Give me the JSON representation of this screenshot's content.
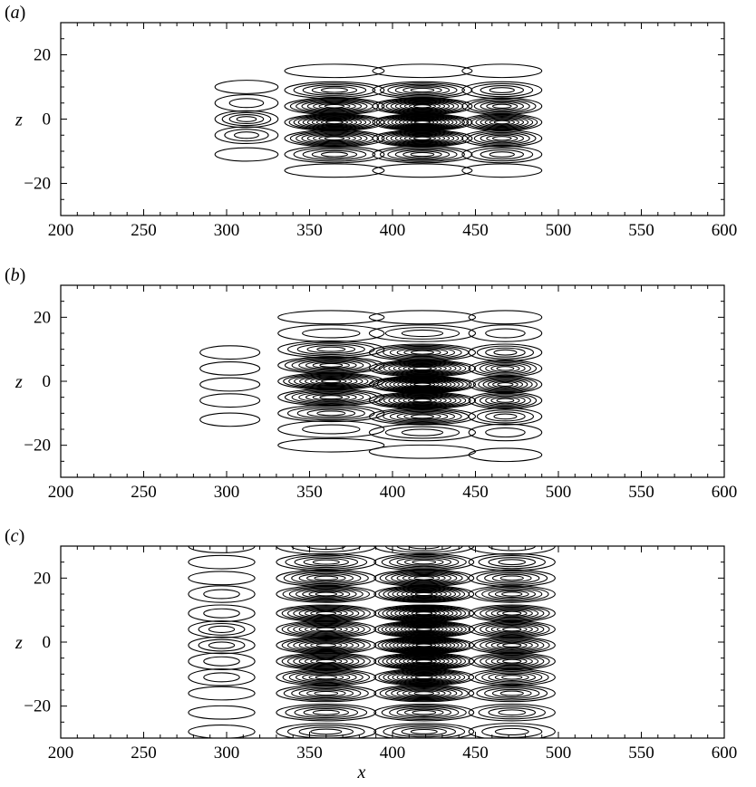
{
  "chart_data": [
    {
      "type": "contour",
      "panel_label": "(a)",
      "xlabel": "",
      "ylabel": "z",
      "xlim": [
        200,
        600
      ],
      "ylim": [
        -30,
        30
      ],
      "xticks": [
        200,
        250,
        300,
        350,
        400,
        450,
        500,
        550,
        600
      ],
      "yticks": [
        -20,
        0,
        20
      ],
      "grid": false,
      "wave_packets": [
        {
          "x_center": 312,
          "x_halfwidth": 19,
          "z_centers": [
            10,
            5,
            0,
            -5,
            -11
          ],
          "levels": [
            1,
            2,
            4,
            3,
            1
          ]
        },
        {
          "x_center": 365,
          "x_halfwidth": 30,
          "z_centers": [
            15,
            9,
            4,
            -1,
            -6,
            -11,
            -16
          ],
          "levels": [
            1,
            5,
            8,
            10,
            8,
            5,
            1
          ]
        },
        {
          "x_center": 418,
          "x_halfwidth": 30,
          "z_centers": [
            15,
            9,
            4,
            -1,
            -6,
            -11,
            -16
          ],
          "levels": [
            1,
            6,
            10,
            12,
            10,
            6,
            1
          ]
        },
        {
          "x_center": 466,
          "x_halfwidth": 24,
          "z_centers": [
            15,
            9,
            4,
            -1,
            -6,
            -11,
            -16
          ],
          "levels": [
            1,
            4,
            6,
            8,
            6,
            4,
            1
          ]
        }
      ]
    },
    {
      "type": "contour",
      "panel_label": "(b)",
      "xlabel": "",
      "ylabel": "z",
      "xlim": [
        200,
        600
      ],
      "ylim": [
        -30,
        30
      ],
      "xticks": [
        200,
        250,
        300,
        350,
        400,
        450,
        500,
        550,
        600
      ],
      "yticks": [
        -20,
        0,
        20
      ],
      "grid": false,
      "wave_packets": [
        {
          "x_center": 302,
          "x_halfwidth": 18,
          "z_centers": [
            9,
            4,
            -1,
            -6,
            -12
          ],
          "levels": [
            1,
            1,
            1,
            1,
            1
          ]
        },
        {
          "x_center": 363,
          "x_halfwidth": 32,
          "z_centers": [
            20,
            15,
            10,
            5,
            0,
            -5,
            -10,
            -15,
            -20
          ],
          "levels": [
            1,
            2,
            5,
            7,
            9,
            7,
            5,
            2,
            1
          ]
        },
        {
          "x_center": 418,
          "x_halfwidth": 32,
          "z_centers": [
            20,
            15,
            9,
            4,
            -1,
            -6,
            -11,
            -16,
            -22
          ],
          "levels": [
            1,
            3,
            7,
            10,
            12,
            10,
            7,
            3,
            1
          ]
        },
        {
          "x_center": 468,
          "x_halfwidth": 22,
          "z_centers": [
            20,
            15,
            9,
            4,
            -1,
            -6,
            -11,
            -16,
            -23
          ],
          "levels": [
            1,
            2,
            4,
            6,
            7,
            6,
            4,
            2,
            1
          ]
        }
      ]
    },
    {
      "type": "contour",
      "panel_label": "(c)",
      "xlabel": "x",
      "ylabel": "z",
      "xlim": [
        200,
        600
      ],
      "ylim": [
        -30,
        30
      ],
      "xticks": [
        200,
        250,
        300,
        350,
        400,
        450,
        500,
        550,
        600
      ],
      "yticks": [
        -20,
        0,
        20
      ],
      "grid": false,
      "wave_packets": [
        {
          "x_center": 297,
          "x_halfwidth": 20,
          "z_centers": [
            30,
            25,
            20,
            15,
            9,
            4,
            -1,
            -6,
            -11,
            -16,
            -22,
            -28
          ],
          "levels": [
            1,
            1,
            1,
            2,
            2,
            3,
            3,
            2,
            2,
            1,
            1,
            1
          ]
        },
        {
          "x_center": 360,
          "x_halfwidth": 30,
          "z_centers": [
            30,
            25,
            20,
            15,
            9,
            4,
            -1,
            -6,
            -11,
            -16,
            -22,
            -28
          ],
          "levels": [
            3,
            5,
            6,
            7,
            8,
            8,
            8,
            8,
            7,
            6,
            5,
            4
          ]
        },
        {
          "x_center": 419,
          "x_halfwidth": 30,
          "z_centers": [
            30,
            25,
            20,
            15,
            9,
            4,
            -1,
            -6,
            -11,
            -16,
            -22,
            -28
          ],
          "levels": [
            4,
            6,
            8,
            10,
            11,
            12,
            12,
            11,
            10,
            8,
            6,
            5
          ]
        },
        {
          "x_center": 472,
          "x_halfwidth": 26,
          "z_centers": [
            30,
            25,
            20,
            15,
            9,
            4,
            -1,
            -6,
            -11,
            -16,
            -22,
            -28
          ],
          "levels": [
            2,
            4,
            5,
            6,
            7,
            7,
            7,
            7,
            6,
            5,
            4,
            3
          ]
        }
      ]
    }
  ]
}
